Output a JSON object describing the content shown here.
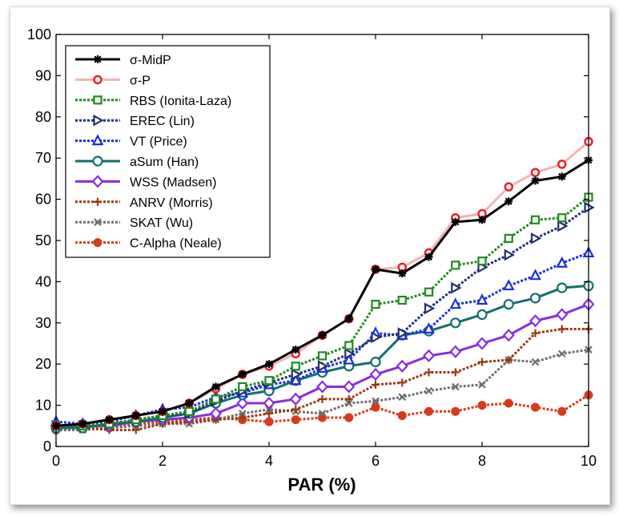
{
  "chart_data": {
    "type": "line",
    "title": "",
    "xlabel": "PAR (%)",
    "ylabel": "",
    "xlim": [
      0,
      10
    ],
    "ylim": [
      0,
      100
    ],
    "xticks": [
      "0",
      "2",
      "4",
      "6",
      "8",
      "10"
    ],
    "yticks": [
      "0",
      "10",
      "20",
      "30",
      "40",
      "50",
      "60",
      "70",
      "80",
      "90",
      "100"
    ],
    "grid": false,
    "legend_position": "top-left",
    "x": [
      0,
      0.5,
      1,
      1.5,
      2,
      2.5,
      3,
      3.5,
      4,
      4.5,
      5,
      5.5,
      6,
      6.5,
      7,
      7.5,
      8,
      8.5,
      9,
      9.5,
      10
    ],
    "series": [
      {
        "name": "σ-MidP",
        "color": "#000000",
        "marker": "star",
        "dash": "solid",
        "values": [
          5,
          5.5,
          6.5,
          7.5,
          8.5,
          10.5,
          14.5,
          17.5,
          20,
          23.5,
          27,
          31,
          43,
          42,
          46,
          54.5,
          55,
          59.5,
          64.5,
          65.5,
          69.5
        ]
      },
      {
        "name": "σ-P",
        "color": "#f4b3b3",
        "marker": "circle-red",
        "dash": "solid",
        "values": [
          5,
          5.5,
          6.5,
          7.5,
          8.5,
          10.5,
          14,
          17.5,
          19.5,
          22.5,
          27,
          31,
          43,
          43.5,
          47,
          55.5,
          56.5,
          63,
          66.5,
          68.5,
          74
        ]
      },
      {
        "name": "RBS (Ionita-Laza)",
        "color": "#1f8c1f",
        "marker": "square",
        "dash": "dot",
        "values": [
          5,
          5,
          5.5,
          6.5,
          7.5,
          8.5,
          11.5,
          14.5,
          16,
          19.5,
          22,
          24.5,
          34.5,
          35.5,
          37.5,
          44,
          45,
          50.5,
          55,
          55.5,
          60.5
        ]
      },
      {
        "name": "EREC (Lin)",
        "color": "#1f3070",
        "marker": "triangle-right",
        "dash": "dot",
        "values": [
          5,
          5,
          5.5,
          6.5,
          7.5,
          8,
          11,
          13.5,
          15.5,
          17.5,
          19.5,
          22.5,
          26.5,
          27.5,
          33.5,
          38.5,
          43.5,
          46.5,
          50.5,
          53.5,
          58
        ]
      },
      {
        "name": "VT (Price)",
        "color": "#1a2ee6",
        "marker": "triangle-up",
        "dash": "dot",
        "values": [
          6,
          5.5,
          6,
          7.5,
          9,
          9.5,
          12,
          13,
          15,
          16,
          19,
          21,
          27.5,
          27,
          28.5,
          34.5,
          35.5,
          39,
          41.5,
          44.5,
          47
        ]
      },
      {
        "name": "aSum (Han)",
        "color": "#10706a",
        "marker": "circle-open",
        "dash": "solid",
        "values": [
          4.5,
          4.5,
          5.5,
          6,
          7,
          8,
          10.5,
          12.5,
          13.5,
          16,
          18,
          19.5,
          20.5,
          27,
          28,
          30,
          32,
          34.5,
          36,
          38.5,
          39
        ]
      },
      {
        "name": "WSS (Madsen)",
        "color": "#8a2be2",
        "marker": "diamond",
        "dash": "solid",
        "values": [
          5,
          5,
          5,
          6,
          6.5,
          7,
          8,
          10.5,
          10.5,
          11.5,
          14.5,
          14.5,
          17.5,
          19.5,
          22,
          23,
          25,
          27,
          30.5,
          32,
          34.5
        ]
      },
      {
        "name": "ANRV (Morris)",
        "color": "#9a3a10",
        "marker": "plus",
        "dash": "dot",
        "values": [
          4.5,
          4.5,
          4,
          4,
          5.5,
          6,
          6.5,
          7,
          8,
          9,
          11.5,
          11.5,
          15,
          15.5,
          18,
          18,
          20.5,
          21,
          27.5,
          28.5,
          28.5
        ]
      },
      {
        "name": "SKAT (Wu)",
        "color": "#6e6e6e",
        "marker": "x",
        "dash": "dot",
        "values": [
          4,
          4,
          4.5,
          5,
          5.5,
          5.5,
          6.5,
          8,
          9,
          8.5,
          8,
          10.5,
          11,
          12,
          13.5,
          14.5,
          15,
          21,
          20.5,
          22.5,
          23.5
        ]
      },
      {
        "name": "C-Alpha (Neale)",
        "color": "#d83a1a",
        "marker": "dot-filled",
        "dash": "dot",
        "values": [
          4,
          5,
          4.5,
          5.5,
          6,
          6.5,
          7,
          6.5,
          6,
          6.5,
          7,
          7,
          9.5,
          7.5,
          8.5,
          8.5,
          10,
          10.5,
          9.5,
          8.5,
          12.5
        ]
      }
    ]
  }
}
